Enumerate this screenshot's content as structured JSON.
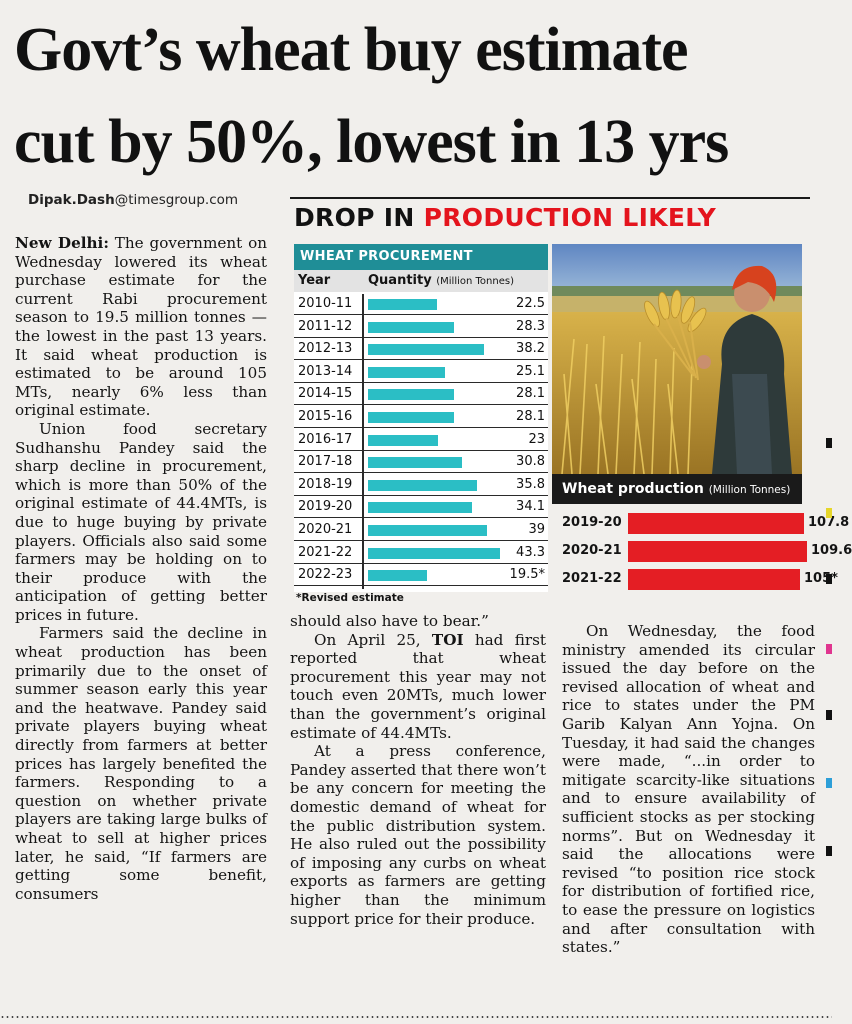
{
  "headline": {
    "line1": "Govt’s wheat buy estimate",
    "line2": "cut by 50%, lowest in 13 yrs"
  },
  "byline": {
    "name": "Dipak.Dash",
    "domain": "@timesgroup.com"
  },
  "infographic": {
    "title_part1": "DROP IN ",
    "title_part2": "PRODUCTION LIKELY",
    "title_colors": {
      "dark": "#121212",
      "red": "#e4141d"
    },
    "table_title": "WHEAT PROCUREMENT",
    "col_year": "Year",
    "col_quantity": "Quantity",
    "col_unit": "(Million Tonnes)",
    "footnote": "*Revised estimate",
    "bar_color": "#2bbec5",
    "header_color": "#1f8e97"
  },
  "chart_data": [
    {
      "type": "bar",
      "title": "WHEAT PROCUREMENT",
      "xlabel": "Year",
      "ylabel": "Quantity (Million Tonnes)",
      "categories": [
        "2010-11",
        "2011-12",
        "2012-13",
        "2013-14",
        "2014-15",
        "2015-16",
        "2016-17",
        "2017-18",
        "2018-19",
        "2019-20",
        "2020-21",
        "2021-22",
        "2022-23"
      ],
      "values": [
        22.5,
        28.3,
        38.2,
        25.1,
        28.1,
        28.1,
        23,
        30.8,
        35.8,
        34.1,
        39,
        43.3,
        19.5
      ],
      "labels": [
        "22.5",
        "28.3",
        "38.2",
        "25.1",
        "28.1",
        "28.1",
        "23",
        "30.8",
        "35.8",
        "34.1",
        "39",
        "43.3",
        "19.5*"
      ],
      "ylim": [
        0,
        45
      ]
    },
    {
      "type": "bar",
      "title": "Wheat production",
      "unit": "(Million Tonnes)",
      "categories": [
        "2019-20",
        "2020-21",
        "2021-22"
      ],
      "values": [
        107.8,
        109.6,
        105
      ],
      "labels": [
        "107.8",
        "109.6",
        "105*"
      ],
      "bar_color": "#e41e24",
      "ylim": [
        0,
        110
      ]
    }
  ],
  "article": {
    "col1": {
      "p1_dateline": "New Delhi:",
      "p1": " The government on Wednesday lowered its wheat purchase estimate for the current Rabi procurement season to 19.5 million tonnes — the lowest in the past 13 years. It said wheat production is estimated to be around 105 MTs, nearly 6% less than original estimate.",
      "p2": "Union food secretary Sudhanshu Pandey said the sharp decline in procurement, which is more than 50% of the original estimate of 44.4MTs, is due to huge buying by private players. Officials also said some farmers may be holding on to their produce with the anticipation of getting better prices in future.",
      "p3": "Farmers said the decline in wheat production has been primarily due to the onset of summer season early this year and the heatwave. Pandey said private players buying wheat directly from farmers at better prices has largely benefited the farmers. Responding to a question on whether private players are taking large bulks of wheat to sell at higher prices later, he said, “If farmers are getting some benefit, consumers"
    },
    "col2": {
      "p1": "should also have to bear.”",
      "p2_a": "On April 25, ",
      "p2_toi": "TOI",
      "p2_b": " had first reported that wheat procurement this year may not touch even 20MTs, much lower than the government’s original estimate of 44.4MTs.",
      "p3": "At a press conference, Pandey asserted that there won’t be any concern for meeting the domestic demand of wheat for the public distribution system. He also ruled out the possibility of imposing any curbs on wheat exports as farmers are getting higher than the minimum support price for their produce."
    },
    "col3": {
      "p1": "On Wednesday, the food ministry amended its circular issued the day before on the revised allocation of wheat and rice to states under the PM Garib Kalyan Ann Yojna. On Tuesday, it had said the changes were made, “...in order to mitigate scarcity-like situations and to ensure availability of sufficient stocks as per stocking norms”. But on Wednesday it said the allocations were revised “to position rice stock for distribution of fortified rice, to ease the pressure on logistics and after consultation with states.”"
    }
  }
}
